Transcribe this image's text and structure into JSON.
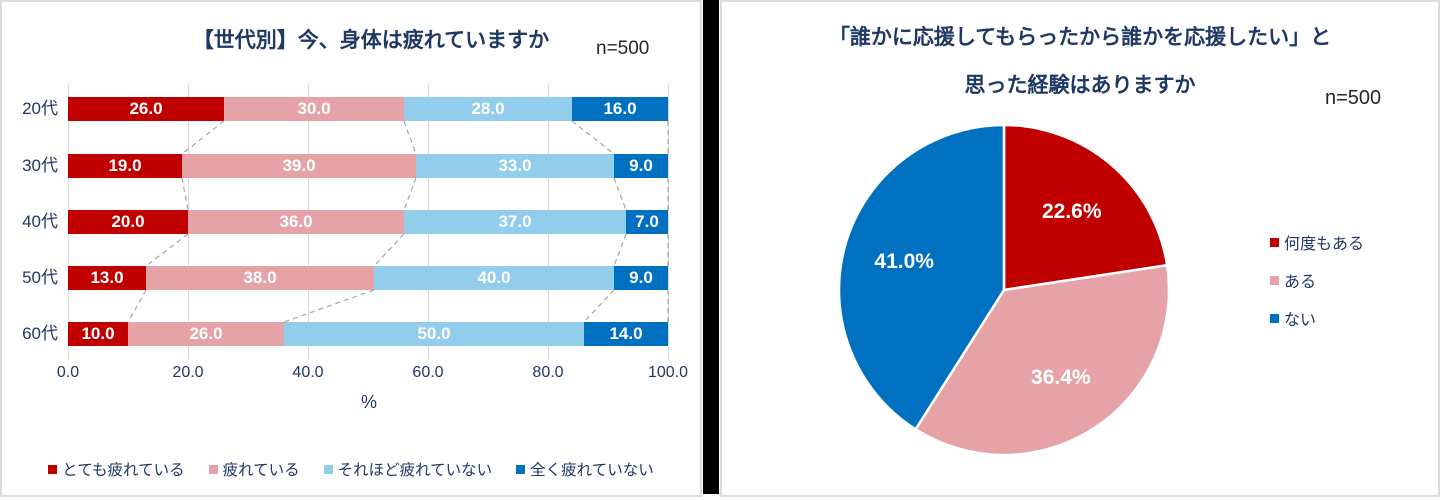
{
  "page": {
    "background": "#FFFFFF",
    "panel_border_color": "#DDDDDD",
    "divider_color": "#000000",
    "title_color": "#1F3864",
    "n_label_color": "#262626",
    "grid_color": "#D9D9D9",
    "series_line_color": "#A6A6A6",
    "data_label_color": "#FFFFFF"
  },
  "chart_data": [
    {
      "type": "bar",
      "subtype": "horizontal-stacked-100pct",
      "title": "【世代別】今、身体は疲れていますか",
      "n_label": "n=500",
      "categories": [
        "20代",
        "30代",
        "40代",
        "50代",
        "60代"
      ],
      "series": [
        {
          "name": "とても疲れている",
          "color": "#C00000",
          "values": [
            26.0,
            19.0,
            20.0,
            13.0,
            10.0
          ]
        },
        {
          "name": "疲れている",
          "color": "#E5A3A7",
          "values": [
            30.0,
            39.0,
            36.0,
            38.0,
            26.0
          ]
        },
        {
          "name": "それほど疲れていない",
          "color": "#92CDEC",
          "values": [
            28.0,
            33.0,
            37.0,
            40.0,
            50.0
          ]
        },
        {
          "name": "全く疲れていない",
          "color": "#0070C0",
          "values": [
            16.0,
            9.0,
            7.0,
            9.0,
            14.0
          ]
        }
      ],
      "xlabel": "%",
      "xlim": [
        0,
        100
      ],
      "xticks": [
        "0.0",
        "20.0",
        "40.0",
        "60.0",
        "80.0",
        "100.0"
      ],
      "grid": true,
      "legend_position": "bottom",
      "series_connector_lines": true,
      "data_label_decimals": 1
    },
    {
      "type": "pie",
      "title_lines": [
        "「誰かに応援してもらったから誰かを応援したい」と",
        "思った経験はありますか"
      ],
      "n_label": "n=500",
      "slices": [
        {
          "label": "何度もある",
          "value": 22.6,
          "display": "22.6%",
          "color": "#C00000"
        },
        {
          "label": "ある",
          "value": 36.4,
          "display": "36.4%",
          "color": "#E5A3A7"
        },
        {
          "label": "ない",
          "value": 41.0,
          "display": "41.0%",
          "color": "#0070C0"
        }
      ],
      "start_angle": "top",
      "direction": "clockwise",
      "legend_position": "right"
    }
  ]
}
